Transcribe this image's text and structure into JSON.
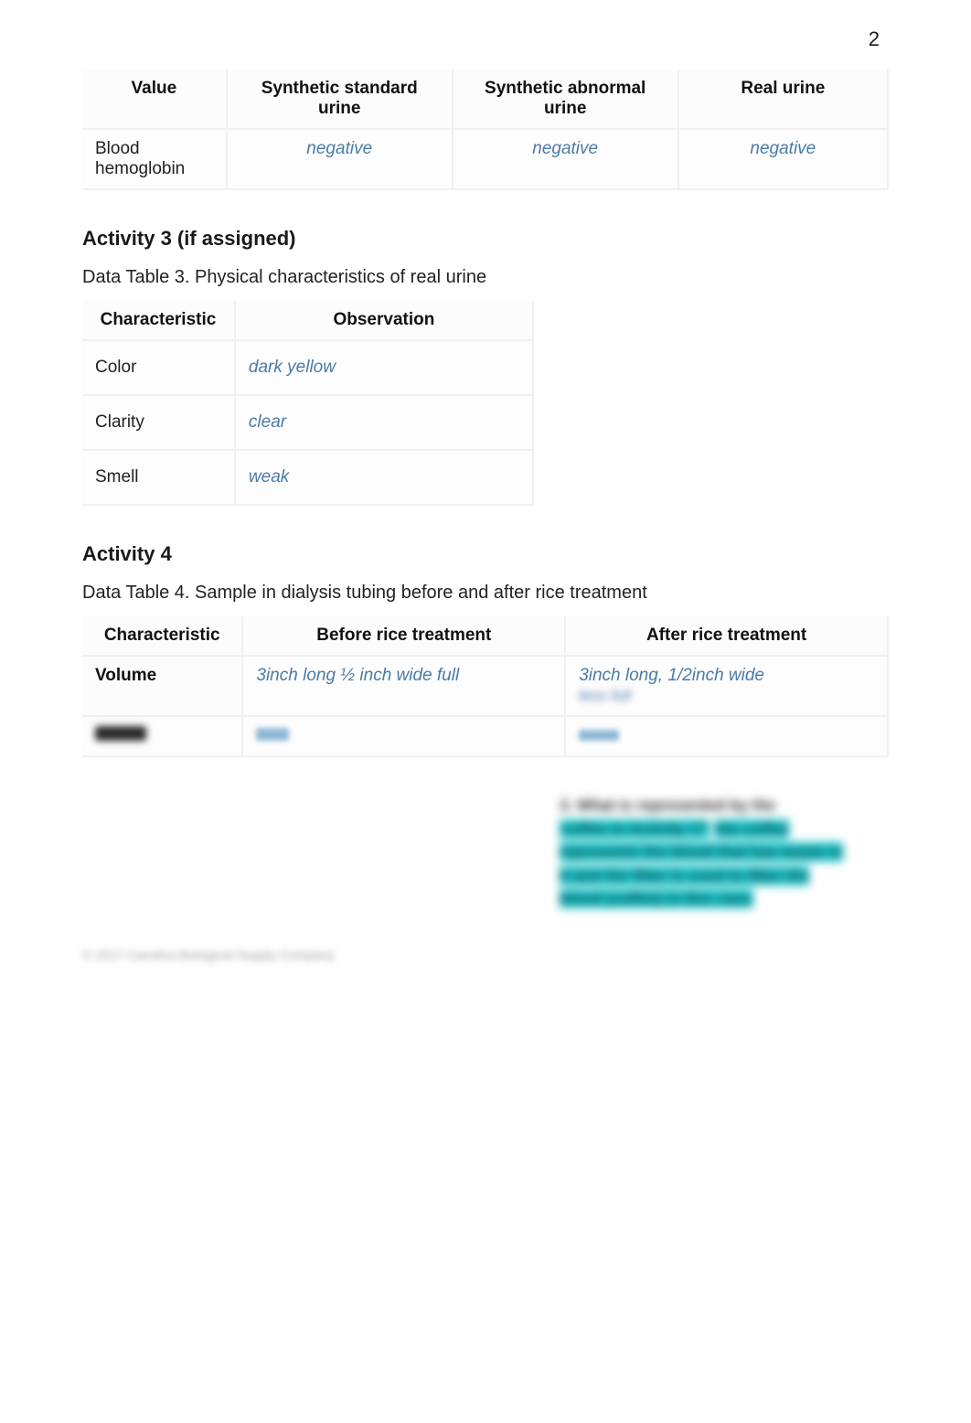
{
  "page_number": "2",
  "table1": {
    "headers": [
      "Value",
      "Synthetic standard urine",
      "Synthetic abnormal urine",
      "Real urine"
    ],
    "row_label": "Blood hemoglobin",
    "values": [
      "negative",
      "negative",
      "negative"
    ]
  },
  "activity3": {
    "title": "Activity 3 (if assigned)",
    "caption": "Data Table 3. Physical characteristics of real urine",
    "headers": [
      "Characteristic",
      "Observation"
    ],
    "rows": [
      {
        "label": "Color",
        "value": "dark yellow"
      },
      {
        "label": "Clarity",
        "value": "clear"
      },
      {
        "label": "Smell",
        "value": "weak"
      }
    ]
  },
  "activity4": {
    "title": "Activity 4",
    "caption": "Data Table 4. Sample in dialysis tubing before and after rice treatment",
    "headers": [
      "Characteristic",
      "Before rice treatment",
      "After rice treatment"
    ],
    "rows": [
      {
        "label": "Volume",
        "before": "3inch long ½ inch wide full",
        "after": "3inch long, 1/2inch wide"
      }
    ]
  },
  "blur_block": {
    "lead": "3. What is represented by the",
    "lines": [
      "coffee in Activity 1?",
      "the coffee represents the blood that has waste in it and the filter is used to filter the blood   (coffee) in this case"
    ]
  },
  "footer": "© 2017 Carolina Biological Supply Company"
}
